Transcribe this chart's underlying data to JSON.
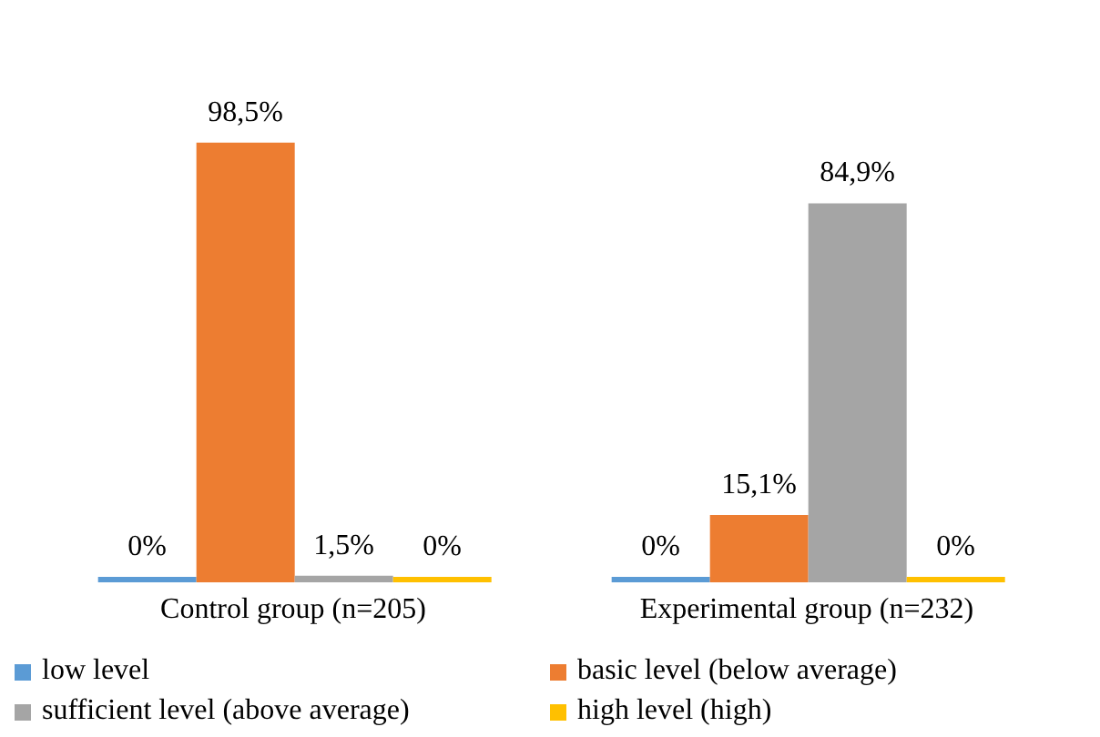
{
  "chart_data": {
    "type": "bar",
    "categories": [
      "Control group (n=205)",
      "Experimental group (n=232)"
    ],
    "series": [
      {
        "name": "low level",
        "color": "#5b9bd5",
        "values": [
          0,
          0
        ],
        "value_labels": [
          "0%",
          "0%"
        ]
      },
      {
        "name": "basic level (below average)",
        "color": "#ed7d31",
        "values": [
          98.5,
          15.1
        ],
        "value_labels": [
          "98,5%",
          "15,1%"
        ]
      },
      {
        "name": "sufficient level (above average)",
        "color": "#a5a5a5",
        "values": [
          1.5,
          84.9
        ],
        "value_labels": [
          "1,5%",
          "84,9%"
        ]
      },
      {
        "name": "high level (high)",
        "color": "#ffc000",
        "values": [
          0,
          0
        ],
        "value_labels": [
          "0%",
          "0%"
        ]
      }
    ],
    "tick_labels": "x",
    "legend": "bottom"
  }
}
